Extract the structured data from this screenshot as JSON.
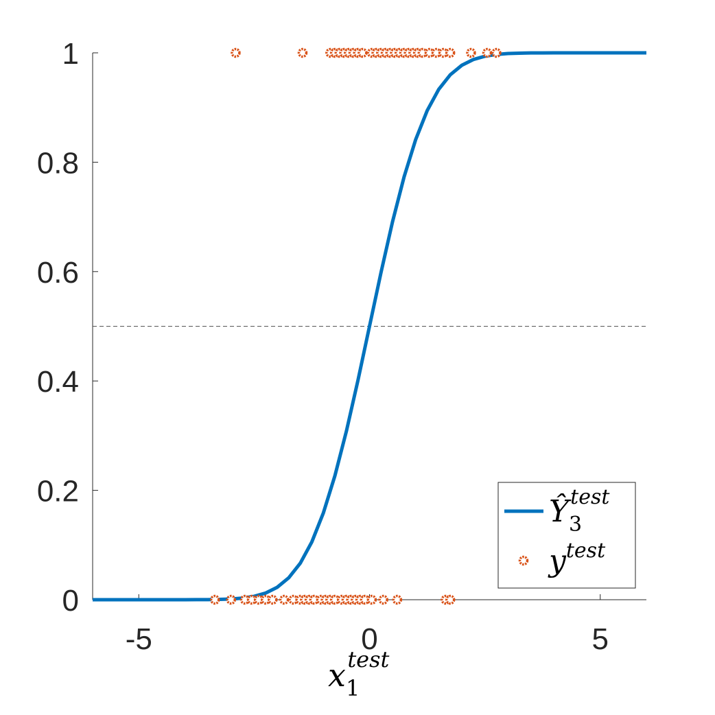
{
  "chart_data": {
    "type": "line",
    "xlabel": {
      "text": "x",
      "subscript": "1",
      "superscript": "test"
    },
    "xlim": [
      -6,
      6
    ],
    "ylim": [
      0,
      1
    ],
    "xticks": [
      -5,
      0,
      5
    ],
    "yticks": [
      0,
      0.2,
      0.4,
      0.6,
      0.8,
      1
    ],
    "hline": 0.5,
    "series": [
      {
        "name": "Ŷ",
        "subscript": "3",
        "superscript": "test",
        "type": "line",
        "color": "#0072bd",
        "x": [
          -6,
          -5.75,
          -5.5,
          -5.25,
          -5,
          -4.75,
          -4.5,
          -4.25,
          -4,
          -3.75,
          -3.5,
          -3.25,
          -3,
          -2.75,
          -2.5,
          -2.25,
          -2,
          -1.75,
          -1.5,
          -1.25,
          -1,
          -0.75,
          -0.5,
          -0.25,
          0,
          0.25,
          0.5,
          0.75,
          1,
          1.25,
          1.5,
          1.75,
          2,
          2.25,
          2.5,
          2.75,
          3,
          3.25,
          3.5,
          3.75,
          4,
          4.25,
          4.5,
          4.75,
          5,
          5.25,
          5.5,
          5.75,
          6
        ],
        "values": [
          0,
          0,
          0,
          0,
          0,
          0,
          0,
          0,
          0,
          0.0001,
          0.0002,
          0.0006,
          0.0013,
          0.003,
          0.0062,
          0.0122,
          0.0228,
          0.0401,
          0.0668,
          0.1056,
          0.1587,
          0.2266,
          0.3085,
          0.4013,
          0.5,
          0.5987,
          0.6915,
          0.7734,
          0.8413,
          0.8944,
          0.9332,
          0.9599,
          0.9772,
          0.9878,
          0.9938,
          0.997,
          0.9987,
          0.9994,
          0.9998,
          0.9999,
          1,
          1,
          1,
          1,
          1,
          1,
          1,
          1,
          1
        ]
      },
      {
        "name": "y",
        "superscript": "test",
        "type": "scatter",
        "color": "#d95319",
        "x": [
          -2.9,
          -1.45,
          -0.85,
          -0.75,
          -0.65,
          -0.55,
          -0.45,
          -0.35,
          -0.25,
          -0.15,
          0.05,
          0.15,
          0.25,
          0.35,
          0.45,
          0.55,
          0.65,
          0.75,
          0.85,
          0.95,
          1.05,
          1.15,
          1.3,
          1.45,
          1.6,
          1.75,
          2.2,
          2.55,
          2.75,
          -3.35,
          -3.0,
          -2.7,
          -2.55,
          -2.4,
          -2.25,
          -2.1,
          -1.85,
          -1.65,
          -1.5,
          -1.4,
          -1.3,
          -1.2,
          -1.05,
          -0.95,
          -0.85,
          -0.75,
          -0.6,
          -0.5,
          -0.4,
          -0.3,
          -0.2,
          -0.1,
          0.05,
          0.3,
          0.6,
          1.65,
          1.75
        ],
        "values": [
          1,
          1,
          1,
          1,
          1,
          1,
          1,
          1,
          1,
          1,
          1,
          1,
          1,
          1,
          1,
          1,
          1,
          1,
          1,
          1,
          1,
          1,
          1,
          1,
          1,
          1,
          1,
          1,
          1,
          0,
          0,
          0,
          0,
          0,
          0,
          0,
          0,
          0,
          0,
          0,
          0,
          0,
          0,
          0,
          0,
          0,
          0,
          0,
          0,
          0,
          0,
          0,
          0,
          0,
          0,
          0,
          0
        ]
      }
    ]
  }
}
